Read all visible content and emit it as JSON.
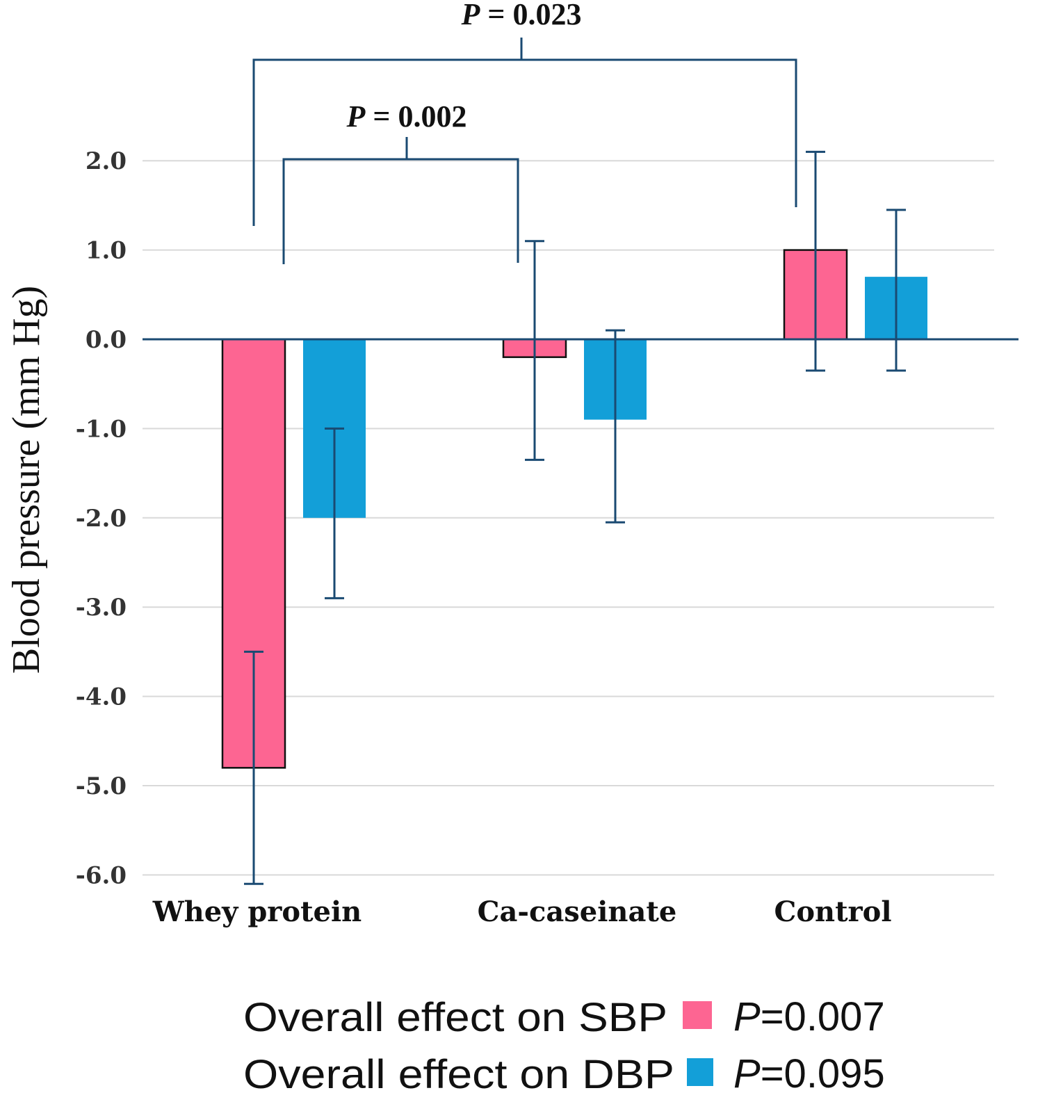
{
  "chart_data": {
    "type": "bar",
    "title": "",
    "xlabel": "",
    "ylabel": "Blood pressure (mm Hg)",
    "ylim": [
      -6.0,
      2.0
    ],
    "yticks": [
      "2.0",
      "1.0",
      "0.0",
      "-1.0",
      "-2.0",
      "-3.0",
      "-4.0",
      "-5.0",
      "-6.0"
    ],
    "grid": true,
    "legend_position": "bottom",
    "categories": [
      "Whey protein",
      "Ca-caseinate",
      "Control"
    ],
    "series": [
      {
        "name": "Overall effect on SBP",
        "p_label": "P=0.007",
        "color": "#fd6592",
        "outlined": true,
        "values": [
          -4.8,
          -0.2,
          1.0
        ],
        "error_upper": [
          -3.5,
          1.1,
          2.1
        ],
        "error_lower": [
          -6.1,
          -1.35,
          -0.35
        ]
      },
      {
        "name": "Overall effect on DBP",
        "p_label": "P=0.095",
        "color": "#139fd8",
        "outlined": false,
        "values": [
          -2.0,
          -0.9,
          0.7
        ],
        "error_upper": [
          -1.0,
          0.1,
          1.45
        ],
        "error_lower": [
          -2.9,
          -2.05,
          -0.35
        ]
      }
    ],
    "annotations": [
      {
        "label_italic": "P",
        "label_rest": " = 0.023",
        "from": "Whey protein",
        "to": "Control"
      },
      {
        "label_italic": "P",
        "label_rest": " = 0.002",
        "from": "Whey protein",
        "to": "Ca-caseinate"
      }
    ],
    "axis_color": "#1a4a72"
  }
}
